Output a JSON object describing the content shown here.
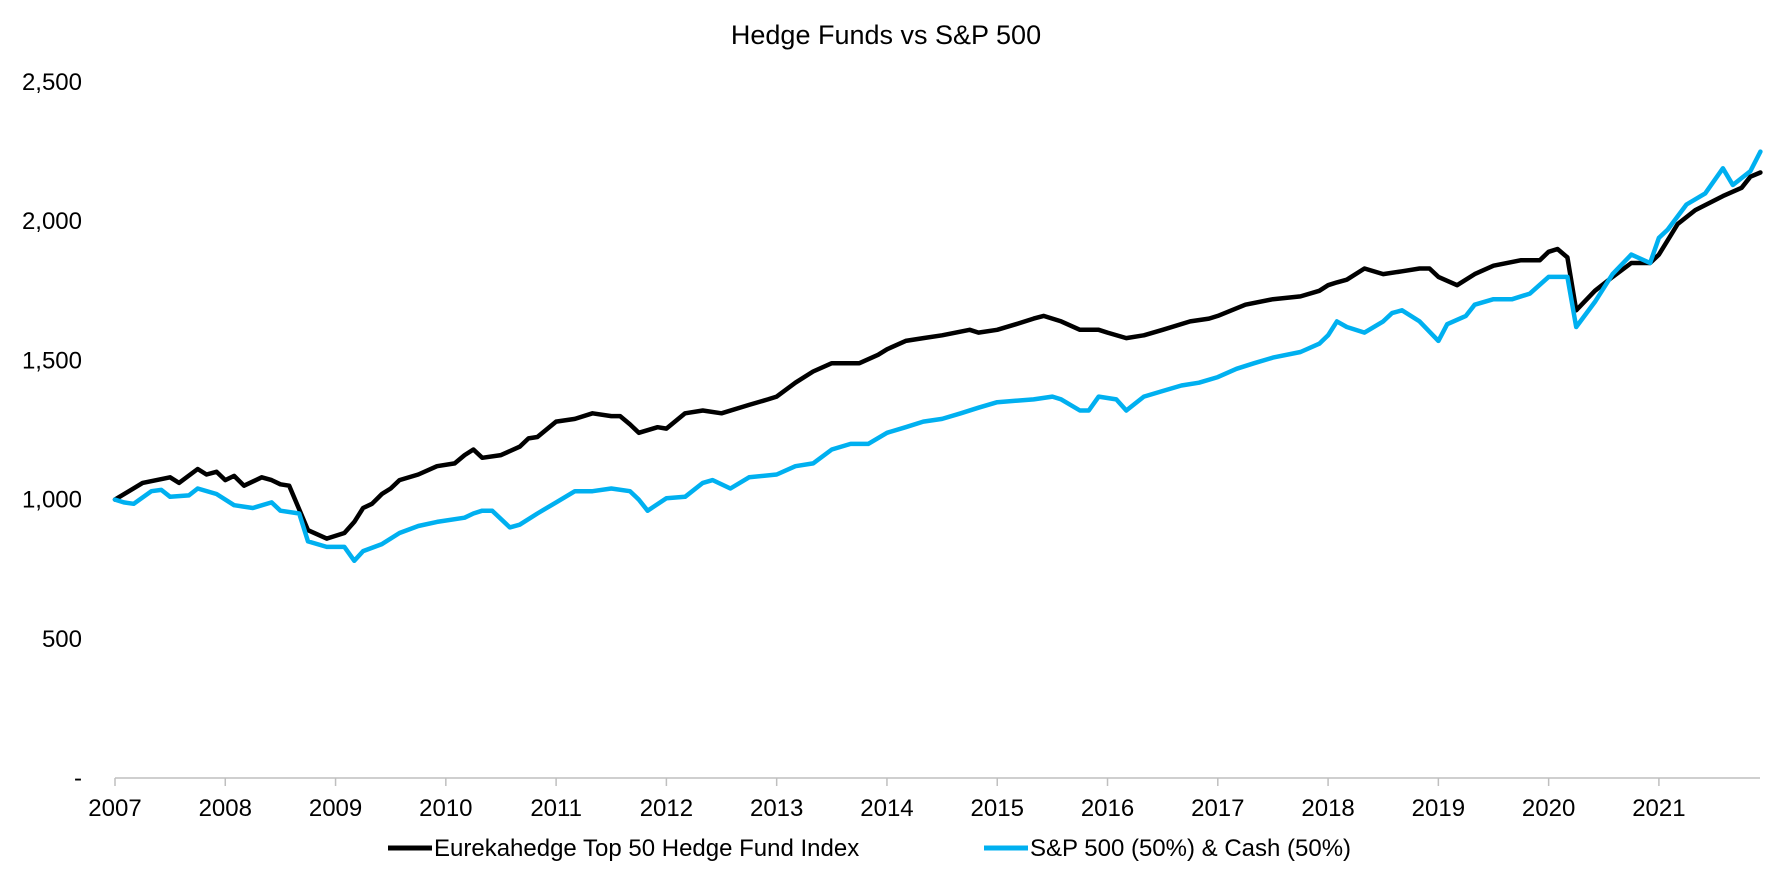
{
  "chart_data": {
    "type": "line",
    "title": "Hedge Funds vs S&P 500",
    "xlabel": "",
    "ylabel": "",
    "xlim": [
      2007,
      2021.92
    ],
    "ylim": [
      0,
      2500
    ],
    "yticks": [
      0,
      500,
      1000,
      1500,
      2000,
      2500
    ],
    "ytick_labels": [
      "-",
      "500",
      "1,000",
      "1,500",
      "2,000",
      "2,500"
    ],
    "xtick_labels": [
      "2007",
      "2008",
      "2009",
      "2010",
      "2011",
      "2012",
      "2013",
      "2014",
      "2015",
      "2016",
      "2017",
      "2018",
      "2019",
      "2020",
      "2021"
    ],
    "grid": false,
    "legend_position": "bottom",
    "series": [
      {
        "name": "Eurekahedge Top 50 Hedge Fund Index",
        "color": "#000000",
        "x": [
          2007.0,
          2007.25,
          2007.5,
          2007.58,
          2007.75,
          2007.83,
          2007.92,
          2008.0,
          2008.08,
          2008.17,
          2008.33,
          2008.42,
          2008.5,
          2008.58,
          2008.75,
          2008.92,
          2009.08,
          2009.17,
          2009.25,
          2009.33,
          2009.42,
          2009.5,
          2009.58,
          2009.75,
          2009.92,
          2010.08,
          2010.17,
          2010.25,
          2010.33,
          2010.5,
          2010.67,
          2010.75,
          2010.83,
          2011.0,
          2011.17,
          2011.33,
          2011.5,
          2011.58,
          2011.67,
          2011.75,
          2011.92,
          2012.0,
          2012.17,
          2012.33,
          2012.5,
          2012.75,
          2012.92,
          2013.0,
          2013.17,
          2013.33,
          2013.5,
          2013.75,
          2013.92,
          2014.0,
          2014.17,
          2014.33,
          2014.5,
          2014.75,
          2014.83,
          2015.0,
          2015.17,
          2015.33,
          2015.42,
          2015.58,
          2015.75,
          2015.92,
          2016.0,
          2016.17,
          2016.33,
          2016.5,
          2016.75,
          2016.92,
          2017.0,
          2017.25,
          2017.5,
          2017.75,
          2017.92,
          2018.0,
          2018.08,
          2018.17,
          2018.33,
          2018.5,
          2018.67,
          2018.83,
          2018.92,
          2019.0,
          2019.17,
          2019.33,
          2019.5,
          2019.75,
          2019.92,
          2020.0,
          2020.08,
          2020.17,
          2020.25,
          2020.42,
          2020.58,
          2020.75,
          2020.92,
          2021.0,
          2021.17,
          2021.33,
          2021.58,
          2021.75,
          2021.83,
          2021.92
        ],
        "values": [
          1000,
          1060,
          1080,
          1060,
          1110,
          1090,
          1100,
          1070,
          1085,
          1050,
          1080,
          1070,
          1055,
          1050,
          890,
          860,
          880,
          920,
          970,
          985,
          1020,
          1040,
          1070,
          1090,
          1120,
          1130,
          1160,
          1180,
          1150,
          1160,
          1190,
          1220,
          1225,
          1280,
          1290,
          1310,
          1300,
          1300,
          1270,
          1240,
          1260,
          1255,
          1310,
          1320,
          1310,
          1340,
          1360,
          1370,
          1420,
          1460,
          1490,
          1490,
          1520,
          1540,
          1570,
          1580,
          1590,
          1610,
          1600,
          1610,
          1630,
          1650,
          1660,
          1640,
          1610,
          1610,
          1600,
          1580,
          1590,
          1610,
          1640,
          1650,
          1660,
          1700,
          1720,
          1730,
          1750,
          1770,
          1780,
          1790,
          1830,
          1810,
          1820,
          1830,
          1830,
          1800,
          1770,
          1810,
          1840,
          1860,
          1860,
          1890,
          1900,
          1870,
          1680,
          1750,
          1800,
          1850,
          1850,
          1880,
          1990,
          2040,
          2090,
          2120,
          2160,
          2175
        ]
      },
      {
        "name": "S&P 500 (50%) & Cash (50%)",
        "color": "#00B0F0",
        "x": [
          2007.0,
          2007.08,
          2007.17,
          2007.33,
          2007.42,
          2007.5,
          2007.67,
          2007.75,
          2007.92,
          2008.08,
          2008.25,
          2008.42,
          2008.5,
          2008.67,
          2008.75,
          2008.92,
          2009.08,
          2009.17,
          2009.25,
          2009.42,
          2009.58,
          2009.75,
          2009.92,
          2010.17,
          2010.25,
          2010.33,
          2010.42,
          2010.58,
          2010.67,
          2010.83,
          2011.0,
          2011.17,
          2011.33,
          2011.5,
          2011.67,
          2011.75,
          2011.83,
          2012.0,
          2012.17,
          2012.33,
          2012.42,
          2012.58,
          2012.75,
          2013.0,
          2013.17,
          2013.33,
          2013.5,
          2013.67,
          2013.83,
          2014.0,
          2014.17,
          2014.33,
          2014.5,
          2014.67,
          2014.83,
          2015.0,
          2015.33,
          2015.5,
          2015.58,
          2015.75,
          2015.83,
          2015.92,
          2016.08,
          2016.17,
          2016.33,
          2016.5,
          2016.67,
          2016.83,
          2017.0,
          2017.17,
          2017.33,
          2017.5,
          2017.75,
          2017.92,
          2018.0,
          2018.08,
          2018.17,
          2018.33,
          2018.5,
          2018.58,
          2018.67,
          2018.83,
          2019.0,
          2019.08,
          2019.25,
          2019.33,
          2019.5,
          2019.67,
          2019.83,
          2020.0,
          2020.17,
          2020.25,
          2020.42,
          2020.58,
          2020.75,
          2020.92,
          2021.0,
          2021.08,
          2021.25,
          2021.42,
          2021.58,
          2021.67,
          2021.83,
          2021.92
        ],
        "values": [
          1000,
          990,
          985,
          1030,
          1035,
          1010,
          1015,
          1040,
          1020,
          980,
          970,
          990,
          960,
          950,
          850,
          830,
          830,
          780,
          815,
          840,
          880,
          905,
          920,
          935,
          950,
          960,
          960,
          900,
          910,
          950,
          990,
          1030,
          1030,
          1040,
          1030,
          1000,
          960,
          1005,
          1010,
          1060,
          1070,
          1040,
          1080,
          1090,
          1120,
          1130,
          1180,
          1200,
          1200,
          1240,
          1260,
          1280,
          1290,
          1310,
          1330,
          1350,
          1360,
          1370,
          1360,
          1320,
          1320,
          1370,
          1360,
          1320,
          1370,
          1390,
          1410,
          1420,
          1440,
          1470,
          1490,
          1510,
          1530,
          1560,
          1590,
          1640,
          1620,
          1600,
          1640,
          1670,
          1680,
          1640,
          1570,
          1630,
          1660,
          1700,
          1720,
          1720,
          1740,
          1800,
          1800,
          1620,
          1710,
          1810,
          1880,
          1850,
          1940,
          1970,
          2060,
          2100,
          2190,
          2130,
          2180,
          2250
        ]
      }
    ]
  }
}
